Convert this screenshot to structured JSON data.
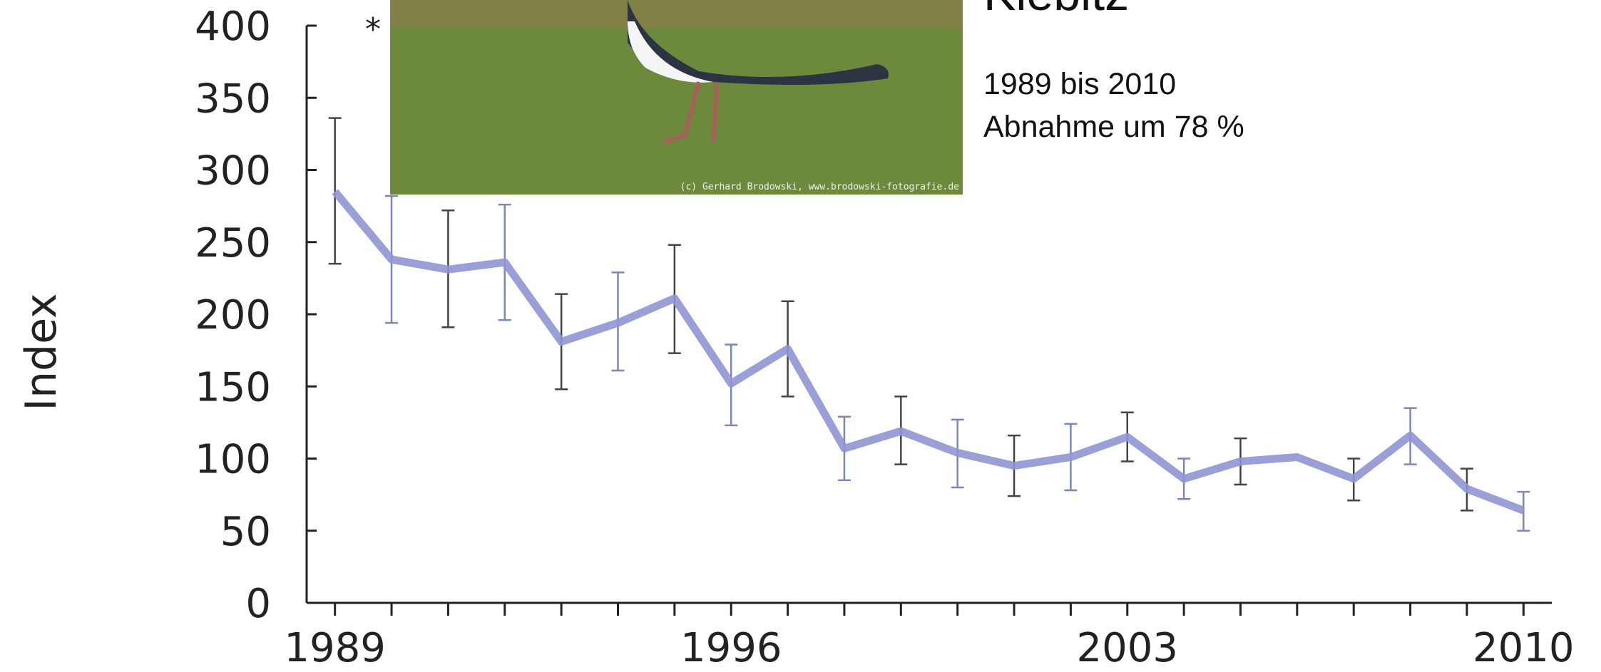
{
  "chart_data": {
    "type": "line",
    "title": "Kiebitz",
    "subtitle": [
      "1989 bis 2010",
      "Abnahme um 78 %"
    ],
    "annotation": "*",
    "photo_credit": "(c) Gerhard Brodowski, www.brodowski-fotografie.de",
    "y_label": "Index",
    "x": [
      1989,
      1990,
      1991,
      1992,
      1993,
      1994,
      1995,
      1996,
      1997,
      1998,
      1999,
      2000,
      2001,
      2002,
      2003,
      2004,
      2005,
      2006,
      2007,
      2008,
      2009,
      2010
    ],
    "series": [
      {
        "color": "#8f95d3",
        "values": [
          285,
          238,
          231,
          236,
          181,
          194,
          211,
          152,
          176,
          107,
          119,
          104,
          95,
          101,
          115,
          86,
          98,
          101,
          86,
          116,
          79,
          64
        ],
        "lower": [
          235,
          194,
          191,
          196,
          148,
          161,
          173,
          123,
          143,
          85,
          96,
          80,
          74,
          78,
          98,
          72,
          82,
          null,
          71,
          96,
          64,
          50
        ],
        "upper": [
          336,
          282,
          272,
          276,
          214,
          229,
          248,
          179,
          209,
          129,
          143,
          127,
          116,
          124,
          132,
          100,
          114,
          null,
          100,
          135,
          93,
          77
        ]
      }
    ],
    "xlim": [
      1988.5,
      2010.5
    ],
    "xticks": [
      1989,
      1996,
      2003,
      2010
    ],
    "ylim": [
      0,
      400
    ],
    "yticks": [
      0,
      50,
      100,
      150,
      200,
      250,
      300,
      350,
      400
    ]
  }
}
